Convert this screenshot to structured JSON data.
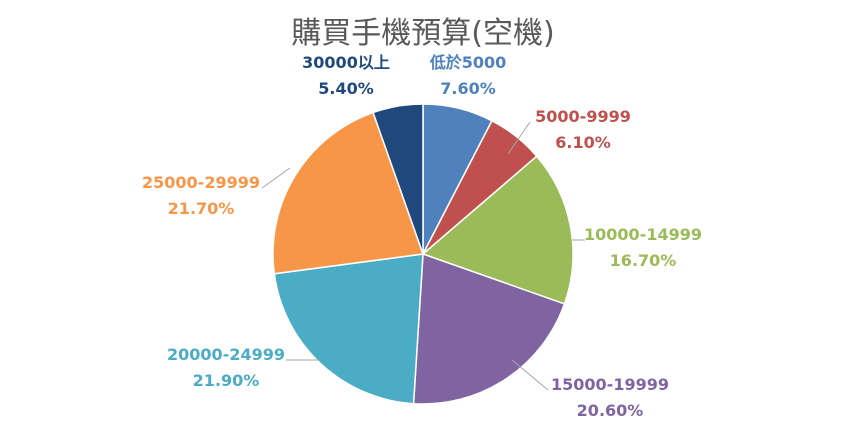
{
  "chart_data": {
    "type": "pie",
    "title": "購買手機預算(空機)",
    "slices": [
      {
        "label": "低於5000",
        "value": 7.6,
        "value_label": "7.60%",
        "color": "#4f81bd"
      },
      {
        "label": "5000-9999",
        "value": 6.1,
        "value_label": "6.10%",
        "color": "#c0504d"
      },
      {
        "label": "10000-14999",
        "value": 16.7,
        "value_label": "16.70%",
        "color": "#9bbb59"
      },
      {
        "label": "15000-19999",
        "value": 20.6,
        "value_label": "20.60%",
        "color": "#8064a2"
      },
      {
        "label": "20000-24999",
        "value": 21.9,
        "value_label": "21.90%",
        "color": "#4bacc6"
      },
      {
        "label": "25000-29999",
        "value": 21.7,
        "value_label": "21.70%",
        "color": "#f79646"
      },
      {
        "label": "30000以上",
        "value": 5.4,
        "value_label": "5.40%",
        "color": "#1f497d"
      }
    ]
  }
}
